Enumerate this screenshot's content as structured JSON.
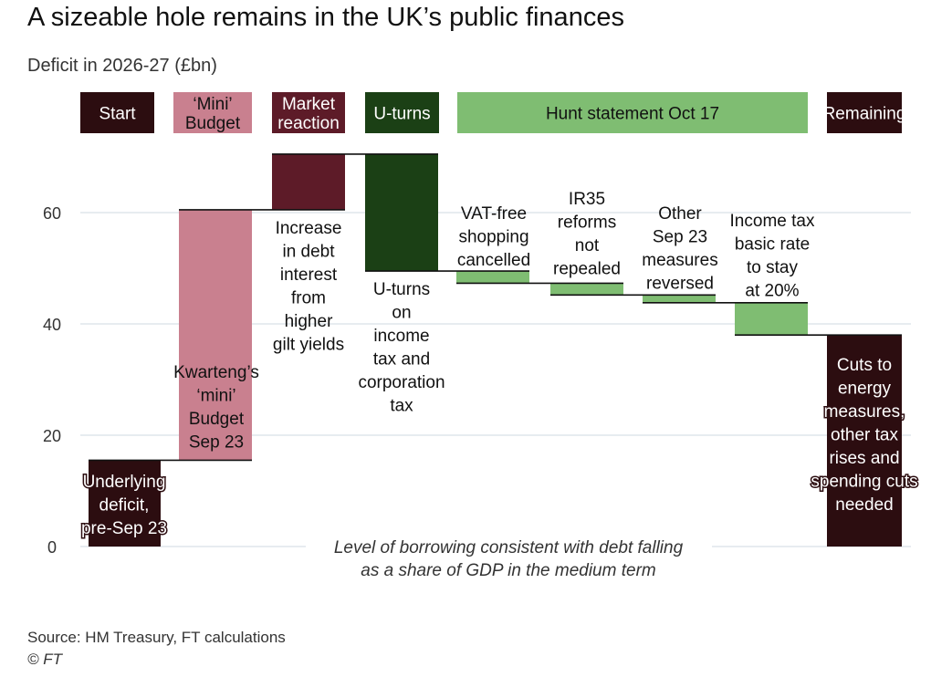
{
  "colors": {
    "start": "#2c0d10",
    "mini_budget": "#c9808f",
    "market": "#5d1b28",
    "uturns": "#1b4015",
    "hunt": "#7fbd72",
    "remaining": "#2c0d10",
    "grid": "#dfe6ec",
    "connector": "#111111"
  },
  "chart_data": {
    "type": "waterfall",
    "title": "A sizeable hole remains in the UK’s public finances",
    "subtitle": "Deficit in 2026-27 (£bn)",
    "ylim": [
      0,
      72
    ],
    "yticks": [
      0,
      20,
      40,
      60
    ],
    "categories": [
      {
        "label_lines": [
          "Start"
        ],
        "color_key": "start",
        "text_color": "#ffffff"
      },
      {
        "label_lines": [
          "‘Mini’",
          "Budget"
        ],
        "color_key": "mini_budget",
        "text_color": "#111111"
      },
      {
        "label_lines": [
          "Market",
          "reaction"
        ],
        "color_key": "market",
        "text_color": "#ffffff"
      },
      {
        "label_lines": [
          "U-turns"
        ],
        "color_key": "uturns",
        "text_color": "#ffffff"
      },
      {
        "label_lines": [
          "Hunt statement Oct 17"
        ],
        "color_key": "hunt",
        "text_color": "#111111"
      },
      {
        "label_lines": [
          "Remaining"
        ],
        "color_key": "remaining",
        "text_color": "#ffffff"
      }
    ],
    "bars": [
      {
        "name": "Underlying deficit, pre-Sep 23",
        "label_lines": [
          "Underlying",
          "deficit,",
          "pre-Sep 23"
        ],
        "start": 0,
        "end": 15.5,
        "color_key": "start"
      },
      {
        "name": "Kwarteng’s ‘mini’ Budget Sep 23",
        "label_lines": [
          "Kwarteng’s",
          "‘mini’",
          "Budget",
          "Sep 23"
        ],
        "start": 15.5,
        "end": 60.5,
        "color_key": "mini_budget"
      },
      {
        "name": "Increase in debt interest from higher gilt yields",
        "label_lines": [
          "Increase",
          "in debt",
          "interest",
          "from",
          "higher",
          "gilt yields"
        ],
        "start": 60.5,
        "end": 70.5,
        "color_key": "market"
      },
      {
        "name": "U-turns on income tax and corporation tax",
        "label_lines": [
          "U-turns",
          "on",
          "income",
          "tax and",
          "corporation",
          "tax"
        ],
        "start": 70.5,
        "end": 49.5,
        "color_key": "uturns"
      },
      {
        "name": "VAT-free shopping cancelled",
        "label_lines": [
          "VAT-free",
          "shopping",
          "cancelled"
        ],
        "start": 49.5,
        "end": 47.3,
        "color_key": "hunt"
      },
      {
        "name": "IR35 reforms not repealed",
        "label_lines": [
          "IR35",
          "reforms",
          "not",
          "repealed"
        ],
        "start": 47.3,
        "end": 45.2,
        "color_key": "hunt"
      },
      {
        "name": "Other Sep 23 measures reversed",
        "label_lines": [
          "Other",
          "Sep 23",
          "measures",
          "reversed"
        ],
        "start": 45.2,
        "end": 43.8,
        "color_key": "hunt"
      },
      {
        "name": "Income tax basic rate to stay at 20%",
        "label_lines": [
          "Income tax",
          "basic rate",
          "to stay",
          "at 20%"
        ],
        "start": 43.8,
        "end": 38.0,
        "color_key": "hunt"
      },
      {
        "name": "Cuts to energy measures, other tax rises and spending cuts needed",
        "label_lines": [
          "Cuts to",
          "energy",
          "measures,",
          "other tax",
          "rises and",
          "spending cuts",
          "needed"
        ],
        "start": 38.0,
        "end": 0,
        "color_key": "remaining"
      }
    ],
    "baseline_note_lines": [
      "Level of borrowing consistent with debt falling",
      "as a share of GDP in the medium term"
    ]
  },
  "source": "Source: HM Treasury, FT calculations",
  "copyright": "© FT"
}
